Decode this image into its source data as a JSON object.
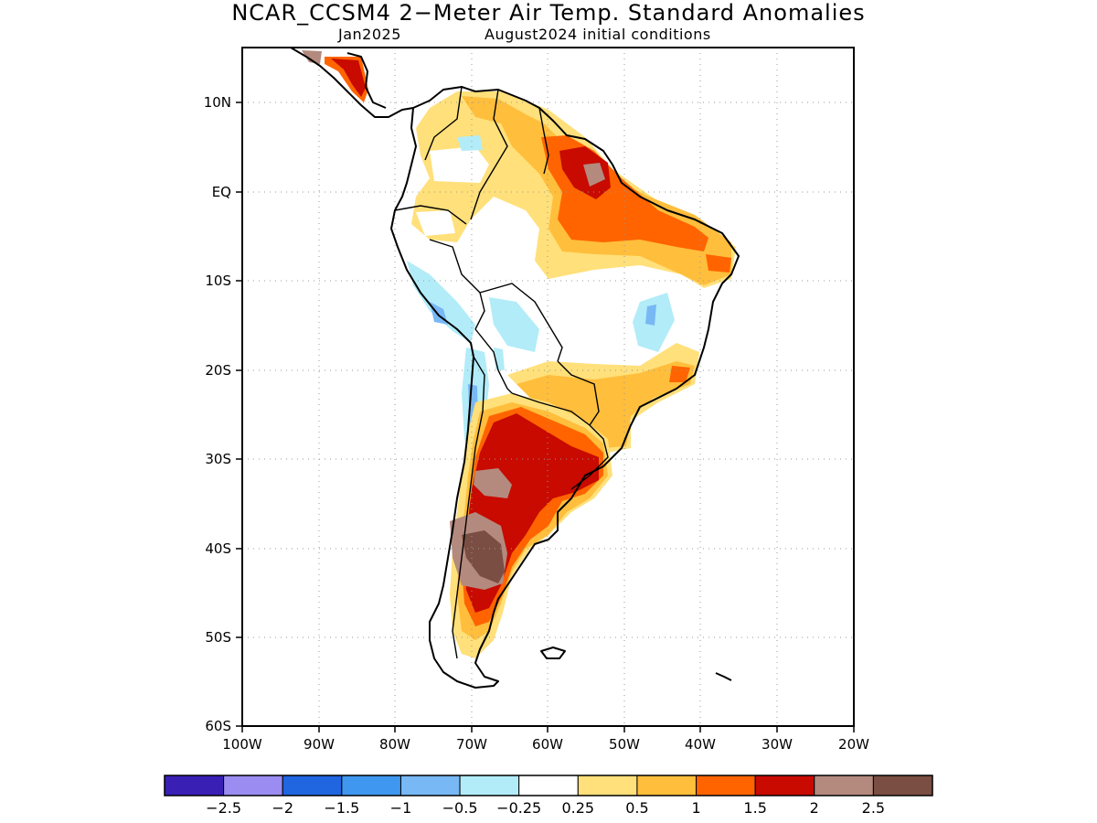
{
  "title": "NCAR_CCSM4 2−Meter Air Temp. Standard Anomalies",
  "subtitle_left": "Jan2025",
  "subtitle_right": "August2024 initial conditions",
  "map": {
    "lon_range": [
      -100,
      -20
    ],
    "lat_range": [
      -60,
      16
    ],
    "lat_ticks": [
      {
        "value": 10,
        "label": "10N"
      },
      {
        "value": 0,
        "label": "EQ"
      },
      {
        "value": -10,
        "label": "10S"
      },
      {
        "value": -20,
        "label": "20S"
      },
      {
        "value": -30,
        "label": "30S"
      },
      {
        "value": -40,
        "label": "40S"
      },
      {
        "value": -50,
        "label": "50S"
      },
      {
        "value": -60,
        "label": "60S"
      }
    ],
    "lon_ticks": [
      {
        "value": -100,
        "label": "100W"
      },
      {
        "value": -90,
        "label": "90W"
      },
      {
        "value": -80,
        "label": "80W"
      },
      {
        "value": -70,
        "label": "70W"
      },
      {
        "value": -60,
        "label": "60W"
      },
      {
        "value": -50,
        "label": "50W"
      },
      {
        "value": -40,
        "label": "40W"
      },
      {
        "value": -30,
        "label": "30W"
      },
      {
        "value": -20,
        "label": "20W"
      }
    ],
    "grid": "dotted"
  },
  "colorbar": {
    "colors": [
      "#3a1fb5",
      "#9b8cf2",
      "#1f66e0",
      "#3f97f0",
      "#77b8f5",
      "#b2ecf8",
      "#ffffff",
      "#ffe07a",
      "#ffbe3c",
      "#ff6400",
      "#c80a00",
      "#b48a7e",
      "#7a4e42"
    ],
    "labels": [
      "−2.5",
      "−2",
      "−1.5",
      "−1",
      "−0.5",
      "−0.25",
      "0.25",
      "0.5",
      "1",
      "1.5",
      "2",
      "2.5"
    ]
  }
}
